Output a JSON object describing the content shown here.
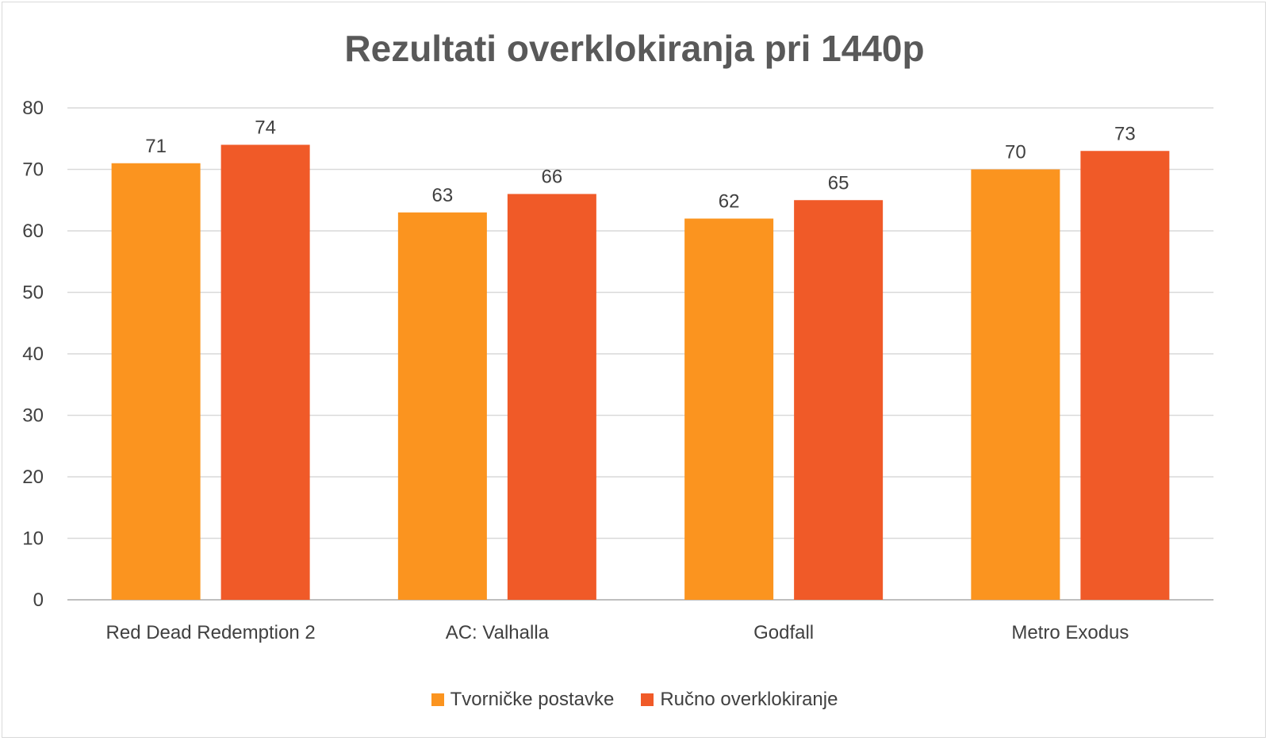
{
  "chart_data": {
    "type": "bar",
    "title": "Rezultati overklokiranja pri 1440p",
    "xlabel": "",
    "ylabel": "",
    "ylim": [
      0,
      80
    ],
    "yticks": [
      0,
      10,
      20,
      30,
      40,
      50,
      60,
      70,
      80
    ],
    "grid": true,
    "legend_position": "bottom",
    "categories": [
      "Red Dead Redemption 2",
      "AC: Valhalla",
      "Godfall",
      "Metro Exodus"
    ],
    "series": [
      {
        "name": "Tvorničke postavke",
        "color": "#fb941f",
        "values": [
          71,
          63,
          62,
          70
        ]
      },
      {
        "name": "Ručno overklokiranje",
        "color": "#f05a28",
        "values": [
          74,
          66,
          65,
          73
        ]
      }
    ]
  },
  "legend": {
    "items": [
      {
        "label": "Tvorničke postavke",
        "color": "#fb941f"
      },
      {
        "label": "Ručno overklokiranje",
        "color": "#f05a28"
      }
    ]
  }
}
